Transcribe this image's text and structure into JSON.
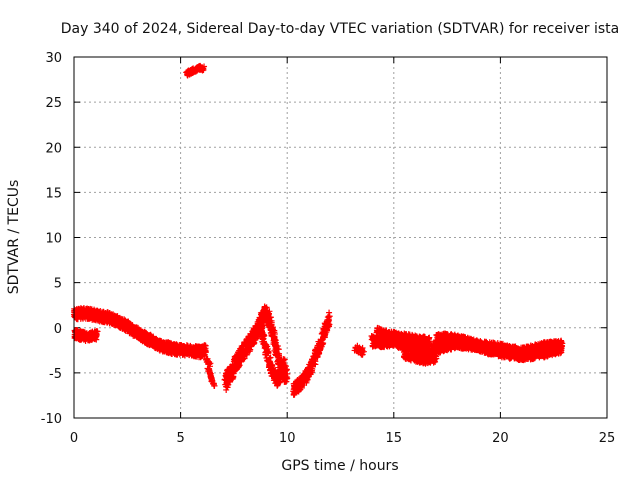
{
  "chart_data": {
    "type": "scatter",
    "title": "Day 340 of 2024, Sidereal Day-to-day VTEC variation (SDTVAR) for receiver ista",
    "xlabel": "GPS time / hours",
    "ylabel": "SDTVAR / TECUs",
    "xlim": [
      0,
      25
    ],
    "ylim": [
      -10,
      30
    ],
    "xticks": [
      0,
      5,
      10,
      15,
      20,
      25
    ],
    "yticks": [
      -10,
      -5,
      0,
      5,
      10,
      15,
      20,
      25,
      30
    ],
    "grid": true,
    "marker": "+",
    "color": "#ff0000",
    "series": [
      {
        "name": "SDTVAR",
        "bands": [
          {
            "x": [
              0.0,
              0.4,
              0.8,
              1.2,
              1.6,
              2.0,
              2.4,
              2.8,
              3.2,
              3.6,
              4.0,
              4.4,
              4.8,
              5.2,
              5.6,
              6.0,
              6.2
            ],
            "y": [
              1.5,
              1.6,
              1.5,
              1.3,
              1.1,
              0.8,
              0.3,
              -0.3,
              -0.9,
              -1.4,
              -1.9,
              -2.2,
              -2.4,
              -2.5,
              -2.6,
              -2.7,
              -2.4
            ],
            "spread": 0.6,
            "density": 6
          },
          {
            "x": [
              0.0,
              0.3,
              0.6,
              0.9,
              1.1
            ],
            "y": [
              -0.6,
              -0.9,
              -1.0,
              -0.9,
              -0.8
            ],
            "spread": 0.5,
            "density": 6
          },
          {
            "x": [
              6.3,
              6.45,
              6.6
            ],
            "y": [
              -4.6,
              -5.6,
              -6.6
            ],
            "spread": 0.2,
            "density": 4
          },
          {
            "x": [
              7.1,
              7.4,
              7.7,
              8.0,
              8.3,
              8.6,
              8.8,
              9.0,
              9.2,
              9.4,
              9.6,
              9.8,
              10.0
            ],
            "y": [
              -6.0,
              -4.8,
              -3.5,
              -2.5,
              -1.5,
              -0.3,
              0.8,
              1.6,
              0.6,
              -1.5,
              -3.5,
              -5.0,
              -5.2
            ],
            "spread": 0.9,
            "density": 7
          },
          {
            "x": [
              8.7,
              8.9,
              9.1,
              9.3,
              9.5,
              9.7,
              9.9
            ],
            "y": [
              0.5,
              -1.5,
              -3.2,
              -4.8,
              -5.8,
              -5.2,
              -3.8
            ],
            "spread": 0.7,
            "density": 6
          },
          {
            "x": [
              10.3,
              10.6,
              10.9,
              11.2,
              11.5,
              11.8,
              12.0
            ],
            "y": [
              -6.8,
              -6.3,
              -5.3,
              -4.0,
              -2.2,
              -0.2,
              1.3
            ],
            "spread": 0.7,
            "density": 6
          },
          {
            "x": [
              13.2,
              13.4,
              13.6
            ],
            "y": [
              -2.3,
              -2.5,
              -2.7
            ],
            "spread": 0.4,
            "density": 3
          },
          {
            "x": [
              14.0,
              14.5,
              15.0,
              15.5,
              16.0,
              16.5,
              17.0,
              17.5,
              18.0,
              18.5,
              19.0,
              19.5,
              20.0,
              20.5,
              21.0,
              21.5,
              22.0,
              22.5,
              22.9
            ],
            "y": [
              -1.5,
              -1.6,
              -1.4,
              -1.9,
              -2.2,
              -2.5,
              -2.3,
              -1.9,
              -1.7,
              -1.8,
              -2.0,
              -2.2,
              -2.3,
              -2.6,
              -2.8,
              -2.5,
              -2.2,
              -2.1,
              -2.0
            ],
            "spread": 0.6,
            "density": 6
          },
          {
            "x": [
              14.2,
              14.7,
              15.2,
              15.7,
              16.2,
              16.7
            ],
            "y": [
              -0.5,
              -0.8,
              -1.0,
              -1.2,
              -1.4,
              -1.6
            ],
            "spread": 0.5,
            "density": 4
          },
          {
            "x": [
              17.0,
              17.5,
              18.0,
              18.5,
              19.0,
              19.5,
              20.0,
              20.5,
              21.0,
              21.5,
              22.0,
              22.5,
              22.9
            ],
            "y": [
              -1.2,
              -1.1,
              -1.3,
              -1.6,
              -2.1,
              -2.5,
              -2.8,
              -3.0,
              -3.1,
              -3.0,
              -2.8,
              -2.5,
              -2.4
            ],
            "spread": 0.5,
            "density": 5
          },
          {
            "x": [
              15.5,
              16.0,
              16.5,
              17.0
            ],
            "y": [
              -3.0,
              -3.4,
              -3.6,
              -3.4
            ],
            "spread": 0.4,
            "density": 4
          },
          {
            "x": [
              5.3,
              5.6,
              5.9,
              6.1
            ],
            "y": [
              28.2,
              28.5,
              28.8,
              28.7
            ],
            "spread": 0.25,
            "density": 5
          },
          {
            "x": [
              6.2,
              6.4
            ],
            "y": [
              -3.5,
              -4.2
            ],
            "spread": 0.2,
            "density": 3
          }
        ]
      }
    ]
  }
}
